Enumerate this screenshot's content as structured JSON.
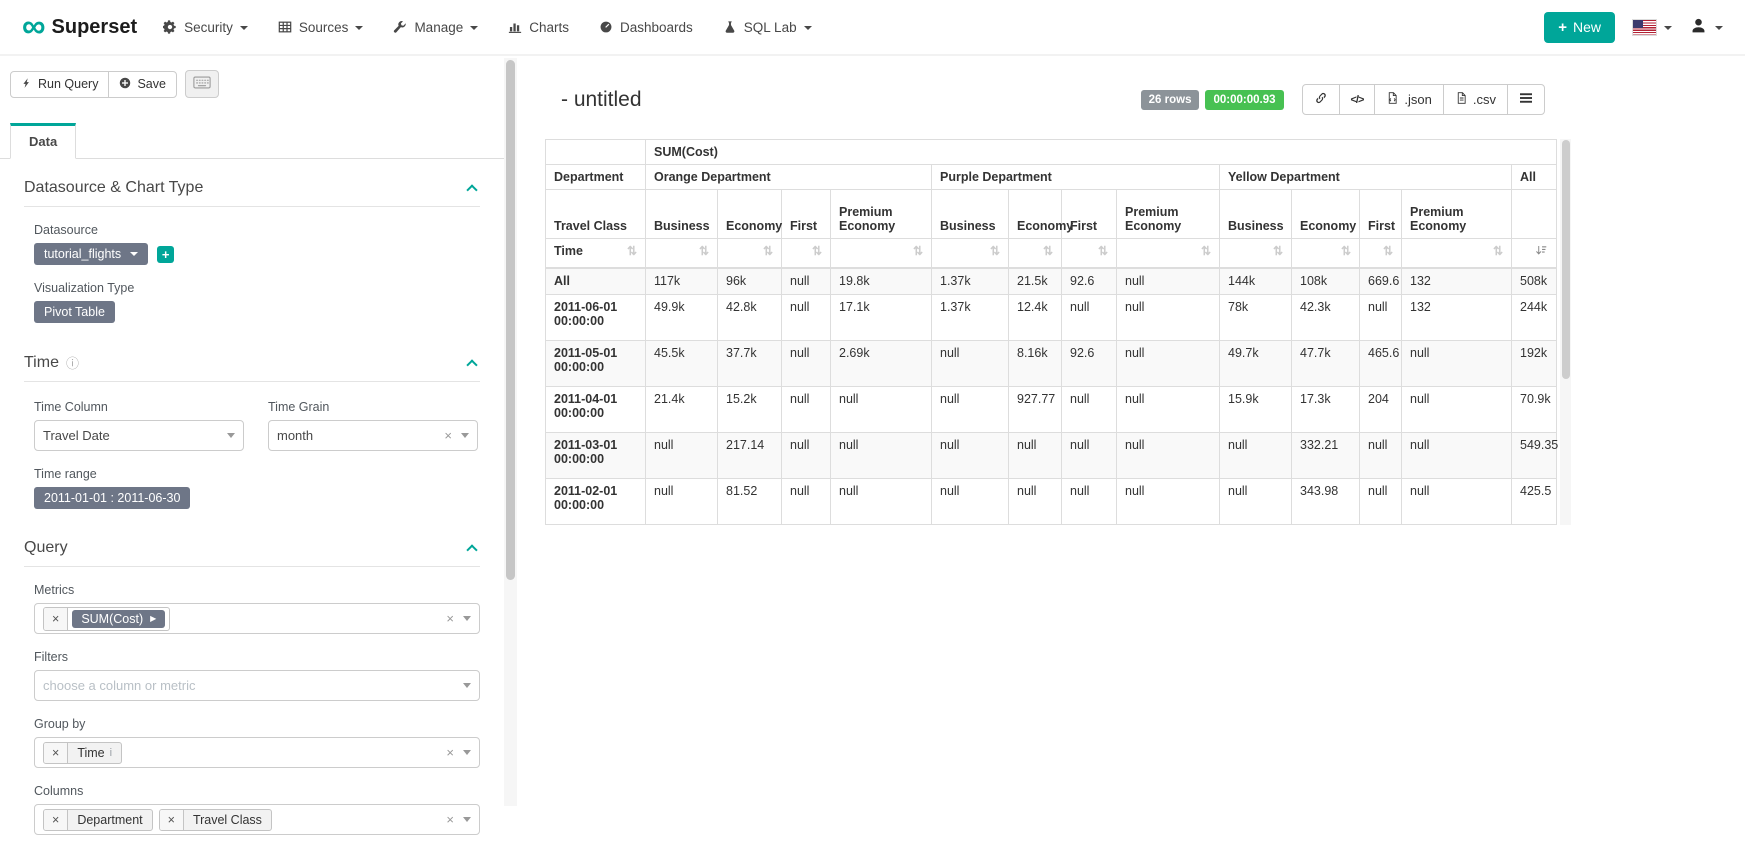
{
  "navbar": {
    "brand": "Superset",
    "items": [
      {
        "label": "Security",
        "icon": "cogs-icon",
        "caret": true
      },
      {
        "label": "Sources",
        "icon": "table-icon",
        "caret": true
      },
      {
        "label": "Manage",
        "icon": "wrench-icon",
        "caret": true
      },
      {
        "label": "Charts",
        "icon": "bar-chart-icon",
        "caret": false
      },
      {
        "label": "Dashboards",
        "icon": "dashboard-icon",
        "caret": false
      },
      {
        "label": "SQL Lab",
        "icon": "flask-icon",
        "caret": true
      }
    ],
    "new_button": "New"
  },
  "colors": {
    "brand_teal": "#00A699",
    "pill_gray": "#6e7687",
    "badge_gray": "#8c9399",
    "badge_green": "#47c152"
  },
  "toolbar": {
    "run_query_label": "Run Query",
    "save_label": "Save"
  },
  "tabs": {
    "data_label": "Data"
  },
  "controls": {
    "section_datasource": {
      "title": "Datasource & Chart Type"
    },
    "datasource": {
      "label": "Datasource",
      "value": "tutorial_flights"
    },
    "viz_type": {
      "label": "Visualization Type",
      "value": "Pivot Table"
    },
    "section_time": {
      "title": "Time"
    },
    "time_column": {
      "label": "Time Column",
      "value": "Travel Date"
    },
    "time_grain": {
      "label": "Time Grain",
      "value": "month"
    },
    "time_range": {
      "label": "Time range",
      "value": "2011-01-01 : 2011-06-30"
    },
    "section_query": {
      "title": "Query"
    },
    "metrics": {
      "label": "Metrics",
      "tokens": [
        "SUM(Cost)"
      ]
    },
    "filters": {
      "label": "Filters",
      "placeholder": "choose a column or metric"
    },
    "groupby": {
      "label": "Group by",
      "tokens": [
        "Time"
      ]
    },
    "columns": {
      "label": "Columns",
      "tokens": [
        "Department",
        "Travel Class"
      ]
    }
  },
  "result": {
    "title": "- untitled",
    "rows_badge": "26 rows",
    "timer": "00:00:00.93",
    "export_json": ".json",
    "export_csv": ".csv"
  },
  "chart_data": {
    "type": "table",
    "metric": "SUM(Cost)",
    "row_header": "Time",
    "col_dim_labels": [
      "Department",
      "Travel Class"
    ],
    "column_groups": [
      {
        "department": "Orange Department",
        "classes": [
          "Business",
          "Economy",
          "First",
          "Premium Economy"
        ]
      },
      {
        "department": "Purple Department",
        "classes": [
          "Business",
          "Economy",
          "First",
          "Premium Economy"
        ]
      },
      {
        "department": "Yellow Department",
        "classes": [
          "Business",
          "Economy",
          "First",
          "Premium Economy"
        ]
      },
      {
        "department": "All",
        "classes": [
          ""
        ]
      }
    ],
    "rows": [
      {
        "time": "All",
        "values": [
          "117k",
          "96k",
          "null",
          "19.8k",
          "1.37k",
          "21.5k",
          "92.6",
          "null",
          "144k",
          "108k",
          "669.6",
          "132",
          "508k"
        ]
      },
      {
        "time": "2011-06-01 00:00:00",
        "values": [
          "49.9k",
          "42.8k",
          "null",
          "17.1k",
          "1.37k",
          "12.4k",
          "null",
          "null",
          "78k",
          "42.3k",
          "null",
          "132",
          "244k"
        ]
      },
      {
        "time": "2011-05-01 00:00:00",
        "values": [
          "45.5k",
          "37.7k",
          "null",
          "2.69k",
          "null",
          "8.16k",
          "92.6",
          "null",
          "49.7k",
          "47.7k",
          "465.6",
          "null",
          "192k"
        ]
      },
      {
        "time": "2011-04-01 00:00:00",
        "values": [
          "21.4k",
          "15.2k",
          "null",
          "null",
          "null",
          "927.77",
          "null",
          "null",
          "15.9k",
          "17.3k",
          "204",
          "null",
          "70.9k"
        ]
      },
      {
        "time": "2011-03-01 00:00:00",
        "values": [
          "null",
          "217.14",
          "null",
          "null",
          "null",
          "null",
          "null",
          "null",
          "null",
          "332.21",
          "null",
          "null",
          "549.35"
        ]
      },
      {
        "time": "2011-02-01 00:00:00",
        "values": [
          "null",
          "81.52",
          "null",
          "null",
          "null",
          "null",
          "null",
          "null",
          "null",
          "343.98",
          "null",
          "null",
          "425.5"
        ]
      }
    ]
  }
}
